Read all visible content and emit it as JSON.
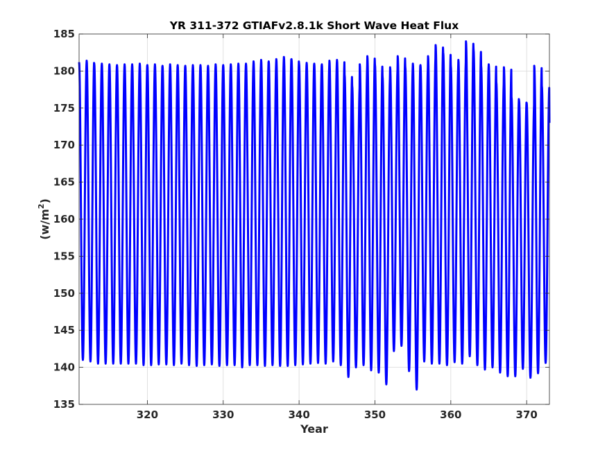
{
  "chart_data": {
    "type": "line",
    "title": "YR 311-372 GTIAFv2.8.1k Short Wave Heat Flux",
    "xlabel": "Year",
    "ylabel_main": "(w/m",
    "ylabel_sup": "2",
    "ylabel_close": ")",
    "xlim": [
      311,
      373
    ],
    "ylim": [
      135,
      185
    ],
    "x_ticks": [
      320,
      330,
      340,
      350,
      360,
      370
    ],
    "y_ticks": [
      135,
      140,
      145,
      150,
      155,
      160,
      165,
      170,
      175,
      180,
      185
    ],
    "grid": true,
    "series": [
      {
        "color": "#0000ff",
        "period_years": 1.0,
        "annual_max": [
          181.2,
          181.4,
          181.0,
          181.0,
          180.9,
          180.8,
          180.9,
          180.9,
          181.0,
          180.8,
          180.9,
          180.7,
          180.9,
          180.8,
          180.7,
          180.8,
          180.8,
          180.7,
          180.9,
          180.8,
          180.9,
          181.0,
          181.0,
          181.3,
          181.5,
          181.3,
          181.6,
          181.9,
          181.6,
          181.0,
          181.1,
          181.0,
          180.9,
          181.4,
          181.5,
          179.5,
          178.0,
          180.9,
          182.0,
          180.9,
          179.3,
          180.5,
          182.0,
          180.6,
          181.0,
          180.8,
          182.0,
          183.5,
          182.5,
          180.7,
          181.5,
          184.0,
          182.9,
          180.7,
          180.9,
          178.5,
          180.5,
          176.5,
          176.0,
          175.7,
          180.7,
          178.0,
          173.0
        ],
        "annual_min": [
          141.0,
          140.8,
          140.5,
          140.5,
          140.5,
          140.5,
          140.5,
          140.5,
          140.3,
          140.3,
          140.4,
          140.4,
          140.3,
          140.5,
          140.3,
          140.2,
          140.3,
          140.4,
          140.2,
          140.3,
          140.3,
          140.0,
          140.3,
          140.3,
          140.2,
          140.3,
          140.2,
          140.2,
          140.3,
          140.4,
          140.5,
          140.6,
          140.5,
          140.8,
          140.3,
          138.7,
          140.0,
          140.3,
          139.6,
          139.3,
          137.7,
          142.2,
          142.9,
          139.5,
          137.0,
          140.8,
          140.5,
          140.5,
          140.3,
          140.7,
          140.5,
          141.5,
          140.3,
          139.7,
          140.0,
          139.3,
          138.8,
          138.8,
          139.8,
          138.6,
          139.2,
          140.6,
          143.0
        ]
      }
    ]
  }
}
